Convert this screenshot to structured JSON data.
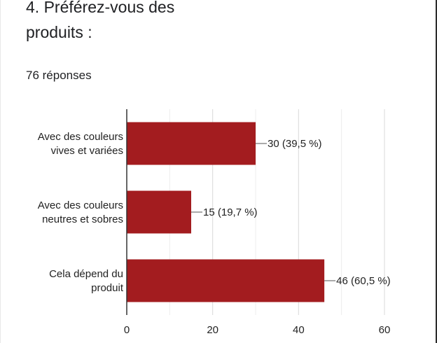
{
  "question": {
    "title": "4. Préférez-vous des\nproduits :",
    "responses": "76 réponses"
  },
  "chart_data": {
    "type": "bar",
    "orientation": "horizontal",
    "categories": [
      [
        "Avec des couleurs",
        "vives et variées"
      ],
      [
        "Avec des couleurs",
        "neutres et sobres"
      ],
      [
        "Cela dépend du",
        "produit"
      ]
    ],
    "values": [
      30,
      15,
      46
    ],
    "value_labels": [
      "30 (39,5 %)",
      "15 (19,7 %)",
      "46 (60,5 %)"
    ],
    "xlim": [
      0,
      60
    ],
    "xticks": [
      0,
      20,
      40,
      60
    ],
    "grid": true,
    "bar_color": "#a31c1f"
  }
}
